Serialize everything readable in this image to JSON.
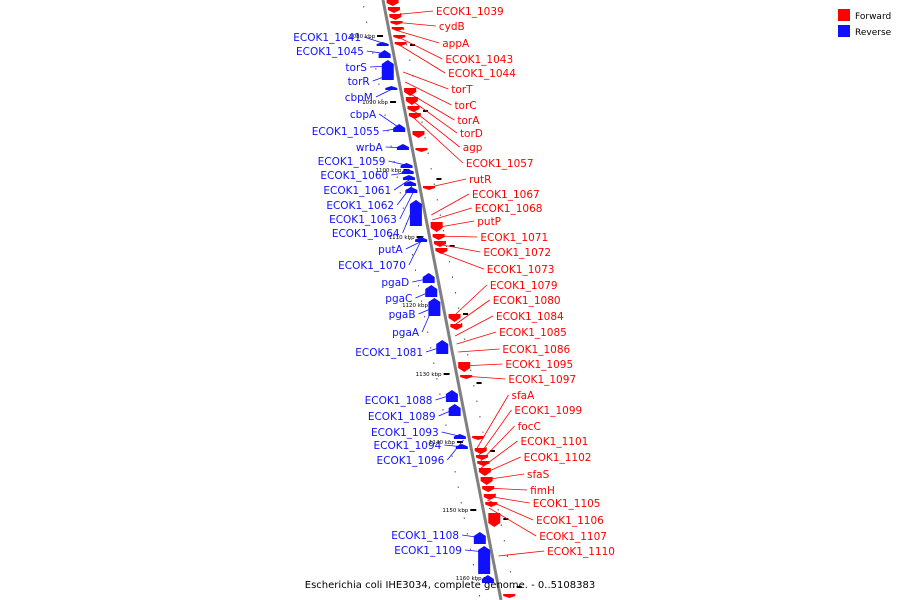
{
  "caption": "Escherichia coli IHE3034, complete genome. - 0..5108383",
  "colors": {
    "forward": "#ff0000",
    "reverse": "#1010ff",
    "backbone": "#808080"
  },
  "legend": [
    {
      "label": "Forward",
      "strand": "forward"
    },
    {
      "label": "Reverse",
      "strand": "reverse"
    }
  ],
  "ruler_ticks": [
    "1080 kbp",
    "1090 kbp",
    "1100 kbp",
    "1110 kbp",
    "1120 kbp",
    "1130 kbp",
    "1140 kbp",
    "1150 kbp",
    "1160 kbp"
  ],
  "forward_genes": [
    "ECOK1_1039",
    "cydB",
    "appA",
    "ECOK1_1043",
    "ECOK1_1044",
    "torT",
    "torC",
    "torA",
    "torD",
    "agp",
    "ECOK1_1057",
    "rutR",
    "ECOK1_1067",
    "ECOK1_1068",
    "putP",
    "ECOK1_1071",
    "ECOK1_1072",
    "ECOK1_1073",
    "ECOK1_1079",
    "ECOK1_1080",
    "ECOK1_1084",
    "ECOK1_1085",
    "ECOK1_1086",
    "ECOK1_1095",
    "ECOK1_1097",
    "sfaA",
    "ECOK1_1099",
    "focC",
    "ECOK1_1101",
    "ECOK1_1102",
    "sfaS",
    "fimH",
    "ECOK1_1105",
    "ECOK1_1106",
    "ECOK1_1107",
    "ECOK1_1110"
  ],
  "reverse_genes": [
    "ECOK1_1041",
    "ECOK1_1045",
    "torS",
    "torR",
    "cbpM",
    "cbpA",
    "ECOK1_1055",
    "wrbA",
    "ECOK1_1059",
    "ECOK1_1060",
    "ECOK1_1061",
    "ECOK1_1062",
    "ECOK1_1063",
    "ECOK1_1064",
    "putA",
    "ECOK1_1070",
    "pgaD",
    "pgaC",
    "pgaB",
    "pgaA",
    "ECOK1_1081",
    "ECOK1_1088",
    "ECOK1_1089",
    "ECOK1_1093",
    "ECOK1_1094",
    "ECOK1_1096",
    "ECOK1_1108",
    "ECOK1_1109"
  ]
}
